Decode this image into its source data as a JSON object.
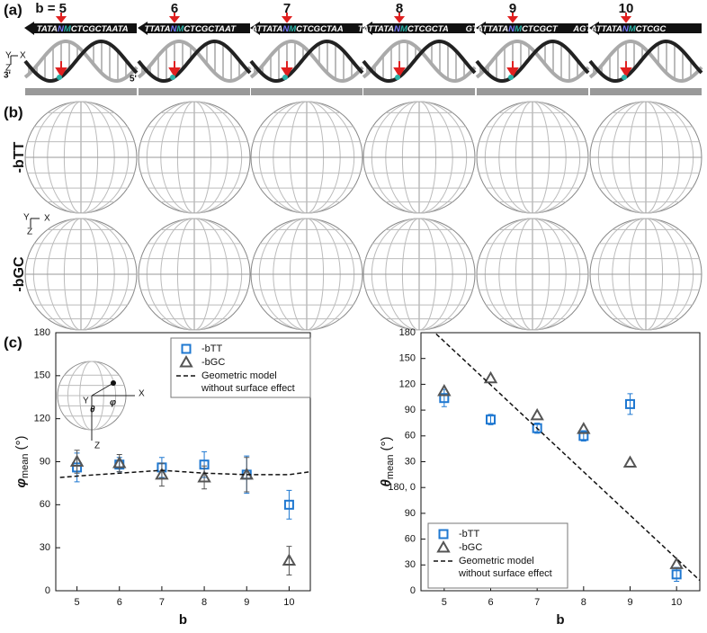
{
  "panel_a": {
    "label": "(a)",
    "b_labels": [
      "b = 5",
      "6",
      "7",
      "8",
      "9",
      "10"
    ],
    "sequences": [
      [
        "TATA",
        "N",
        "M",
        "CTCGCTAATA"
      ],
      [
        "TTATA",
        "N",
        "M",
        "CTCGCTAAT"
      ],
      [
        "ATTATA",
        "N",
        "M",
        "CTCGCTAA"
      ],
      [
        "TATTATA",
        "N",
        "M",
        "CTCGCTA"
      ],
      [
        "GTATTATA",
        "N",
        "M",
        "CTCGCT"
      ],
      [
        "AGTATTATA",
        "N",
        "M",
        "CTCGC"
      ]
    ],
    "axes": [
      "Y",
      "X",
      "Z"
    ],
    "ends": [
      "3'",
      "5'"
    ]
  },
  "panel_b": {
    "label": "(b)",
    "row_labels": [
      "-bTT",
      "-bGC"
    ],
    "axes": [
      "Y",
      "X",
      "Z"
    ]
  },
  "panel_c": {
    "label": "(c)"
  },
  "chart_data": [
    {
      "type": "scatter",
      "x_label": "b",
      "y_label": {
        "symbol": "φ",
        "subscript": "mean",
        "unit": "(°)"
      },
      "inset_labels": {
        "x": "X",
        "y": "Y",
        "z": "Z",
        "theta": "θ",
        "phi": "φ"
      },
      "xlim": [
        4.5,
        10.5
      ],
      "xticks": [
        5,
        6,
        7,
        8,
        9,
        10
      ],
      "ylim": [
        0,
        180
      ],
      "yticks": [
        0,
        30,
        60,
        90,
        120,
        150,
        180
      ],
      "legend": "top-right",
      "series": [
        {
          "name": "-bTT",
          "color": "#1f78d1",
          "marker": "square",
          "x": [
            5,
            6,
            7,
            8,
            9,
            10
          ],
          "values": [
            86,
            88,
            86,
            88,
            81,
            60
          ],
          "errors": [
            10,
            5,
            7,
            9,
            13,
            10
          ]
        },
        {
          "name": "-bGC",
          "color": "#555555",
          "marker": "triangle",
          "x": [
            5,
            6,
            7,
            8,
            9,
            10
          ],
          "values": [
            90,
            89,
            81,
            79,
            81,
            21
          ],
          "errors": [
            8,
            6,
            8,
            8,
            12,
            10
          ]
        },
        {
          "name_lines": [
            "Geometric model",
            "without surface effect"
          ],
          "color": "#111111",
          "marker": "dashed-line",
          "x": [
            4.6,
            5,
            6,
            7,
            8,
            9,
            10,
            10.5
          ],
          "values": [
            79,
            80,
            82,
            84,
            82,
            81,
            81,
            83
          ]
        }
      ]
    },
    {
      "type": "scatter",
      "x_label": "b",
      "y_label": {
        "symbol": "θ",
        "subscript": "mean",
        "unit": "(°)"
      },
      "xlim": [
        4.5,
        10.5
      ],
      "xticks": [
        5,
        6,
        7,
        8,
        9,
        10
      ],
      "ylim": [
        -120,
        180
      ],
      "yticks": [
        {
          "value": -120,
          "label": "0"
        },
        {
          "value": -90,
          "label": "30"
        },
        {
          "value": -60,
          "label": "60"
        },
        {
          "value": -30,
          "label": "90"
        },
        {
          "value": 0,
          "label": "180, 0"
        },
        30,
        60,
        90,
        120,
        150,
        180
      ],
      "legend": "bottom-left",
      "series": [
        {
          "name": "-bTT",
          "color": "#1f78d1",
          "marker": "square",
          "x": [
            5,
            6,
            7,
            8,
            9,
            10
          ],
          "values": [
            104,
            79,
            69,
            60,
            97,
            -101
          ],
          "errors": [
            10,
            6,
            6,
            6,
            12,
            8
          ]
        },
        {
          "name": "-bGC",
          "color": "#555555",
          "marker": "triangle",
          "x": [
            5,
            6,
            7,
            8,
            9,
            10
          ],
          "values": [
            112,
            127,
            84,
            68,
            29,
            -89
          ]
        },
        {
          "name_lines": [
            "Geometric model",
            "without surface effect"
          ],
          "color": "#111111",
          "marker": "dashed-line",
          "x": [
            4.6,
            10.5
          ],
          "values": [
            190,
            -108
          ]
        }
      ]
    }
  ]
}
